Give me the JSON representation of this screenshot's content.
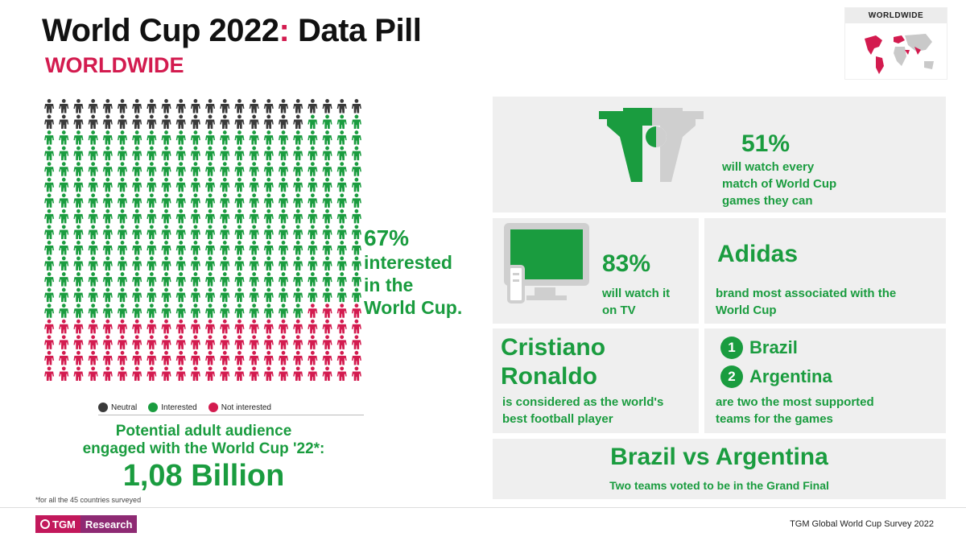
{
  "header": {
    "title_main": "World Cup 2022",
    "title_colon": ":",
    "title_rest": " Data Pill",
    "subtitle": "WORLDWIDE"
  },
  "region": {
    "label": "WORLDWIDE"
  },
  "pictogram": {
    "total": 396,
    "neutral": 40,
    "interested": 264,
    "not_interested": 92,
    "colors": {
      "neutral": "#3a3a3a",
      "interested": "#1a9c3f",
      "not_interested": "#d31b4f"
    }
  },
  "interested_callout": {
    "value": "67%",
    "label_lines": [
      "interested",
      "in the",
      "World Cup."
    ]
  },
  "legend": {
    "items": [
      {
        "label": "Neutral",
        "color": "#3a3a3a"
      },
      {
        "label": "Interested",
        "color": "#1a9c3f"
      },
      {
        "label": "Not interested",
        "color": "#d31b4f"
      }
    ]
  },
  "audience": {
    "line1": "Potential adult audience",
    "line2": "engaged with the World Cup '22*:",
    "value": "1,08 Billion",
    "footnote": "*for all the 45 countries surveyed"
  },
  "cards": {
    "watch_every": {
      "value": "51%",
      "lines": [
        "will watch every",
        "match of World Cup",
        "games they can"
      ]
    },
    "tv": {
      "value": "83%",
      "lines": [
        "will watch it",
        "on TV"
      ]
    },
    "brand": {
      "value": "Adidas",
      "lines": [
        "brand most associated with the",
        "World Cup"
      ]
    },
    "player": {
      "name_lines": [
        "Cristiano",
        "Ronaldo"
      ],
      "lines": [
        "is considered as the world's",
        "best football player"
      ]
    },
    "teams": {
      "items": [
        {
          "rank": "1",
          "name": "Brazil"
        },
        {
          "rank": "2",
          "name": "Argentina"
        }
      ],
      "lines": [
        "are two the most supported",
        "teams for the games"
      ]
    },
    "final": {
      "value": "Brazil vs Argentina",
      "caption": "Two teams voted to be in the Grand Final"
    }
  },
  "footer": {
    "logo_a": "TGM",
    "logo_b": "Research",
    "survey": "TGM Global World Cup Survey 2022"
  },
  "colors": {
    "accent": "#d31b4f",
    "green": "#1a9c3f",
    "card_bg": "#efefef"
  }
}
